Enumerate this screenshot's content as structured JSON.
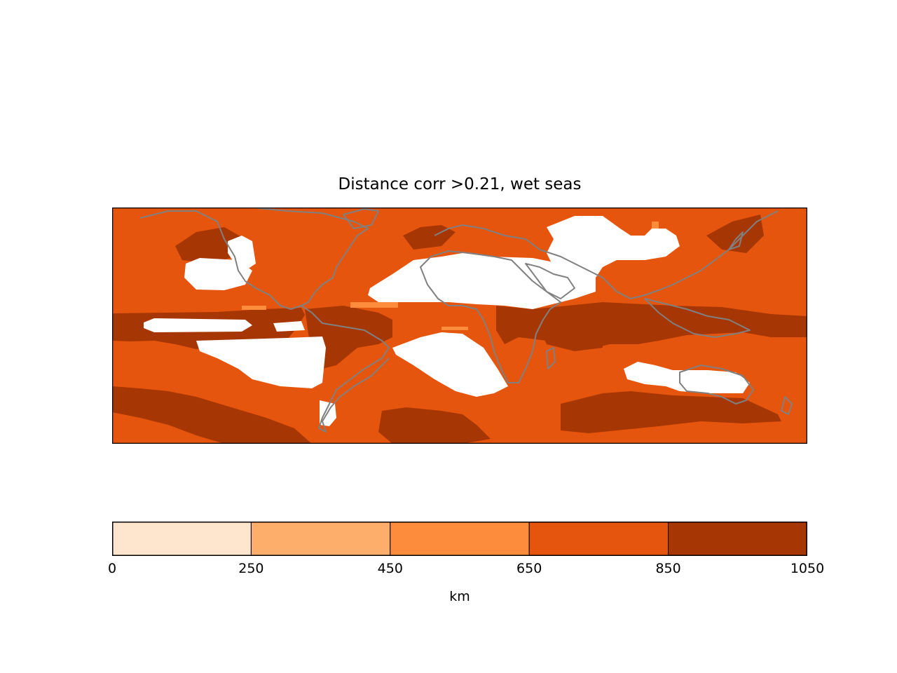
{
  "chart_data": {
    "type": "heatmap",
    "title": "Distance corr >0.21, wet seas",
    "colorbar": {
      "label": "km",
      "ticks": [
        "0",
        "250",
        "450",
        "650",
        "850",
        "1050"
      ],
      "bounds": [
        0,
        250,
        450,
        650,
        850,
        1050
      ],
      "colors": [
        "#fee6ce",
        "#fdae6b",
        "#fd8d3c",
        "#e6550d",
        "#a63603"
      ]
    },
    "map": {
      "projection": "equirectangular",
      "lon_range": [
        -180,
        180
      ],
      "lat_range": [
        -60,
        60
      ],
      "background_class_color": "#e6550d",
      "high_class_color": "#a63603",
      "masked_color": "#ffffff",
      "coastline_color": "#808080",
      "regions": [
        {
          "class": "850-1050",
          "name": "equatorial Pacific band"
        },
        {
          "class": "850-1050",
          "name": "equatorial Indian Ocean"
        },
        {
          "class": "850-1050",
          "name": "Amazon and equatorial Atlantic"
        },
        {
          "class": "850-1050",
          "name": "Southern Ocean band"
        },
        {
          "class": "850-1050",
          "name": "North Pacific patches"
        },
        {
          "class": "masked",
          "name": "Sahara and Arabia"
        },
        {
          "class": "masked",
          "name": "Central Asia"
        },
        {
          "class": "masked",
          "name": "Southeast Pacific"
        },
        {
          "class": "masked",
          "name": "South Atlantic"
        },
        {
          "class": "masked",
          "name": "Southeast Indian Ocean and Australia"
        },
        {
          "class": "masked",
          "name": "Northeast Pacific"
        }
      ]
    }
  }
}
